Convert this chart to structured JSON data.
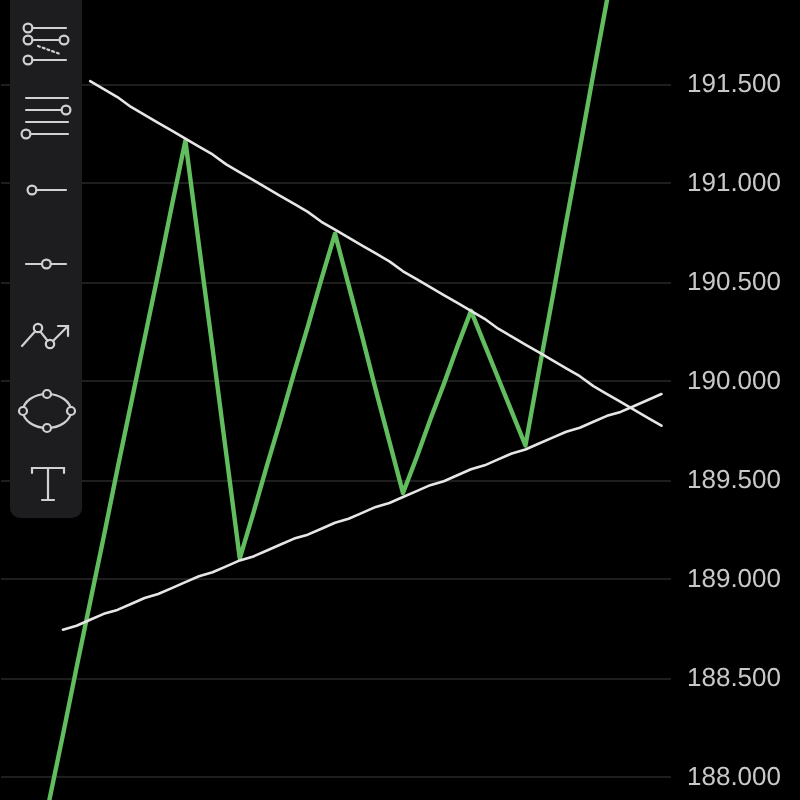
{
  "chart_data": {
    "type": "line",
    "ylim": [
      187.88,
      191.92
    ],
    "yticks": [
      {
        "value": 188,
        "label": "188.000"
      },
      {
        "value": 188.5,
        "label": "188.500"
      },
      {
        "value": 189,
        "label": "189.000"
      },
      {
        "value": 189.5,
        "label": "189.500"
      },
      {
        "value": 190,
        "label": "190.000"
      },
      {
        "value": 190.5,
        "label": "190.500"
      },
      {
        "value": 191,
        "label": "191.000"
      },
      {
        "value": 191.5,
        "label": "191.500"
      }
    ],
    "grid": "y",
    "tick_labels": "y",
    "categories": [
      null,
      null,
      null,
      null,
      null,
      null,
      null,
      null,
      null,
      null,
      null,
      null,
      null,
      null,
      null,
      null,
      null,
      null,
      null,
      null,
      null,
      null,
      null,
      null,
      null,
      null,
      null,
      null,
      null,
      null,
      null,
      null,
      null,
      null,
      null,
      null,
      null,
      null,
      null,
      null,
      null,
      null,
      null,
      null,
      null,
      null,
      null,
      null,
      null
    ],
    "series": [
      {
        "color": "#62bd5f",
        "values": [
          null,
          null,
          null,
          187.88,
          188.21,
          188.55,
          188.88,
          189.21,
          189.55,
          189.88,
          190.21,
          190.54,
          190.88,
          191.21,
          190.68,
          190.16,
          189.63,
          189.1,
          189.33,
          189.57,
          189.8,
          190.04,
          190.27,
          190.51,
          190.74,
          190.48,
          190.22,
          189.95,
          189.69,
          189.43,
          189.61,
          189.8,
          189.98,
          190.17,
          190.35,
          190.18,
          190.01,
          189.84,
          189.67,
          190.05,
          190.42,
          190.8,
          191.17,
          191.55,
          191.92,
          null,
          null,
          null,
          null
        ]
      },
      {
        "color": "#e6e6e6",
        "values": [
          null,
          null,
          null,
          null,
          null,
          null,
          191.51,
          191.47,
          191.43,
          191.38,
          191.34,
          191.3,
          191.26,
          191.22,
          191.18,
          191.14,
          191.09,
          191.05,
          191.01,
          190.97,
          190.93,
          190.89,
          190.85,
          190.8,
          190.76,
          190.72,
          190.68,
          190.64,
          190.6,
          190.55,
          190.51,
          190.47,
          190.43,
          190.39,
          190.35,
          190.31,
          190.26,
          190.22,
          190.18,
          190.14,
          190.1,
          190.06,
          190.02,
          189.97,
          189.93,
          189.89,
          189.85,
          189.81,
          189.77
        ]
      },
      {
        "color": "#e6e6e6",
        "values": [
          null,
          null,
          null,
          null,
          188.74,
          188.76,
          188.79,
          188.82,
          188.84,
          188.87,
          188.9,
          188.92,
          188.95,
          188.98,
          189.01,
          189.03,
          189.06,
          189.09,
          189.11,
          189.14,
          189.17,
          189.2,
          189.22,
          189.25,
          189.28,
          189.3,
          189.33,
          189.36,
          189.38,
          189.41,
          189.44,
          189.47,
          189.49,
          189.52,
          189.55,
          189.57,
          189.6,
          189.63,
          189.65,
          189.68,
          189.71,
          189.74,
          189.76,
          189.79,
          189.82,
          189.84,
          189.87,
          189.9,
          189.93
        ]
      }
    ]
  }
}
